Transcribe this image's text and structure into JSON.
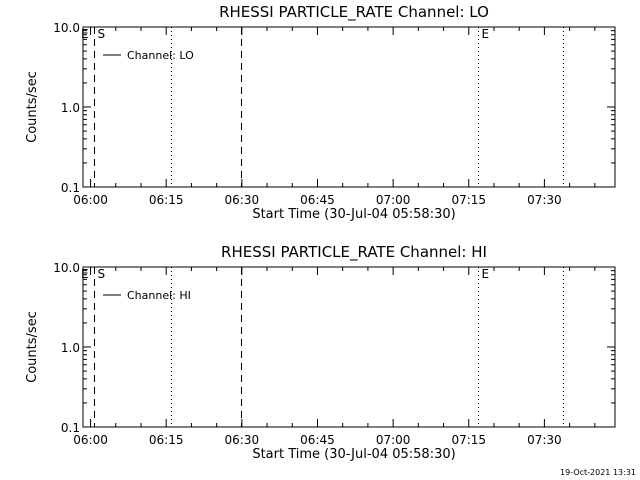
{
  "chart_data": [
    {
      "type": "line",
      "title": "RHESSI PARTICLE_RATE Channel: LO",
      "xlabel": "Start Time (30-Jul-04 05:58:30)",
      "ylabel": "Counts/sec",
      "y_scale": "log",
      "ylim": [
        0.1,
        10.0
      ],
      "y_ticks": [
        "0.1",
        "1.0",
        "10.0"
      ],
      "x_ticks": [
        "06:00",
        "06:15",
        "06:30",
        "06:45",
        "07:00",
        "07:15",
        "07:30"
      ],
      "x_tick_minutes": [
        90,
        105,
        120,
        135,
        150,
        165,
        180
      ],
      "xlim_minutes": [
        88.5,
        194
      ],
      "grid": false,
      "legend": {
        "placement": "top-left",
        "entries": [
          "Channel: LO"
        ]
      },
      "series": [
        {
          "name": "Channel: LO",
          "values": []
        }
      ],
      "vlines": [
        {
          "x_minutes": 90.6,
          "style": "dashed",
          "label": "S"
        },
        {
          "x_minutes": 105.9,
          "style": "dotted",
          "label": ""
        },
        {
          "x_minutes": 119.9,
          "style": "dashed",
          "label": ""
        },
        {
          "x_minutes": 166.8,
          "style": "dotted",
          "label": "E"
        },
        {
          "x_minutes": 183.6,
          "style": "dotted",
          "label": ""
        }
      ],
      "corner_label": "E"
    },
    {
      "type": "line",
      "title": "RHESSI PARTICLE_RATE Channel: HI",
      "xlabel": "Start Time (30-Jul-04 05:58:30)",
      "ylabel": "Counts/sec",
      "y_scale": "log",
      "ylim": [
        0.1,
        10.0
      ],
      "y_ticks": [
        "0.1",
        "1.0",
        "10.0"
      ],
      "x_ticks": [
        "06:00",
        "06:15",
        "06:30",
        "06:45",
        "07:00",
        "07:15",
        "07:30"
      ],
      "x_tick_minutes": [
        90,
        105,
        120,
        135,
        150,
        165,
        180
      ],
      "xlim_minutes": [
        88.5,
        194
      ],
      "grid": false,
      "legend": {
        "placement": "top-left",
        "entries": [
          "Channel: HI"
        ]
      },
      "series": [
        {
          "name": "Channel: HI",
          "values": []
        }
      ],
      "vlines": [
        {
          "x_minutes": 90.6,
          "style": "dashed",
          "label": "S"
        },
        {
          "x_minutes": 105.9,
          "style": "dotted",
          "label": ""
        },
        {
          "x_minutes": 119.9,
          "style": "dashed",
          "label": ""
        },
        {
          "x_minutes": 166.8,
          "style": "dotted",
          "label": "E"
        },
        {
          "x_minutes": 183.6,
          "style": "dotted",
          "label": ""
        }
      ],
      "corner_label": "E"
    }
  ],
  "footer": {
    "timestamp": "19-Oct-2021 13:31"
  }
}
